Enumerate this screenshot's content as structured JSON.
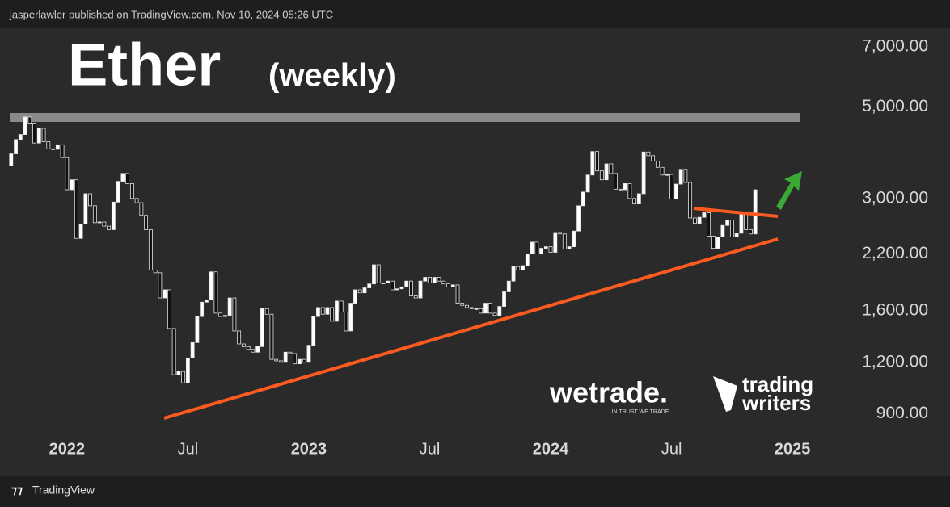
{
  "header": {
    "published": "jasperlawler published on TradingView.com, Nov 10, 2024 05:26 UTC"
  },
  "chart_data": {
    "type": "candlestick",
    "title": "Ether",
    "subtitle": "(weekly)",
    "log_scale": true,
    "up_color": "#ffffff",
    "down_color": "#111111",
    "first_open": 3600,
    "values": [
      3850,
      4170,
      4290,
      4730,
      4570,
      4090,
      4440,
      4120,
      3960,
      3950,
      4050,
      3770,
      3150,
      3330,
      2400,
      2600,
      3080,
      2880,
      2620,
      2630,
      2570,
      2520,
      2940,
      3300,
      3450,
      3260,
      3000,
      2930,
      2730,
      2520,
      2010,
      1980,
      1720,
      1800,
      1450,
      1120,
      1140,
      1070,
      1230,
      1340,
      1550,
      1680,
      1700,
      1990,
      1580,
      1550,
      1560,
      1720,
      1430,
      1330,
      1310,
      1290,
      1270,
      1310,
      1620,
      1570,
      1220,
      1210,
      1200,
      1270,
      1260,
      1190,
      1220,
      1200,
      1320,
      1550,
      1630,
      1570,
      1630,
      1510,
      1690,
      1590,
      1430,
      1670,
      1800,
      1770,
      1820,
      1860,
      2070,
      1870,
      1870,
      1890,
      1800,
      1810,
      1830,
      1890,
      1740,
      1720,
      1890,
      1930,
      1870,
      1930,
      1890,
      1860,
      1830,
      1850,
      1670,
      1650,
      1630,
      1620,
      1620,
      1580,
      1670,
      1580,
      1560,
      1640,
      1780,
      1890,
      2050,
      2010,
      2060,
      2200,
      2350,
      2200,
      2270,
      2290,
      2220,
      2480,
      2460,
      2260,
      2290,
      2500,
      2880,
      3110,
      3420,
      3900,
      3500,
      3330,
      3640,
      3450,
      3160,
      3150,
      3260,
      3000,
      2910,
      3080,
      3890,
      3810,
      3700,
      3570,
      3420,
      3430,
      2990,
      3250,
      3530,
      3280,
      2690,
      2610,
      2700,
      2770,
      2430,
      2270,
      2420,
      2580,
      2660,
      2420,
      2470,
      2750,
      2520,
      2460,
      3150
    ],
    "xlim": [
      -2.4,
      178.4
    ],
    "xticks": [
      {
        "value": 12,
        "label": "2022"
      },
      {
        "value": 38,
        "label": "Jul"
      },
      {
        "value": 64,
        "label": "2023"
      },
      {
        "value": 90,
        "label": "Jul"
      },
      {
        "value": 116,
        "label": "2024"
      },
      {
        "value": 142,
        "label": "Jul"
      },
      {
        "value": 168,
        "label": "2025"
      }
    ],
    "ylim": [
      795,
      7770
    ],
    "yticks": [
      {
        "value": 900,
        "label": "900.00"
      },
      {
        "value": 1200,
        "label": "1,200.00"
      },
      {
        "value": 1600,
        "label": "1,600.00"
      },
      {
        "value": 2200,
        "label": "2,200.00"
      },
      {
        "value": 3000,
        "label": "3,000.00"
      },
      {
        "value": 5000,
        "label": "5,000.00"
      },
      {
        "value": 7000,
        "label": "7,000.00"
      }
    ]
  },
  "logos": {
    "wetrade": "wetrade.",
    "wetrade_tagline": "IN TRUST WE TRADE",
    "writers_1": "trading",
    "writers_2": "writers"
  },
  "footer": {
    "brand": "TradingView"
  }
}
